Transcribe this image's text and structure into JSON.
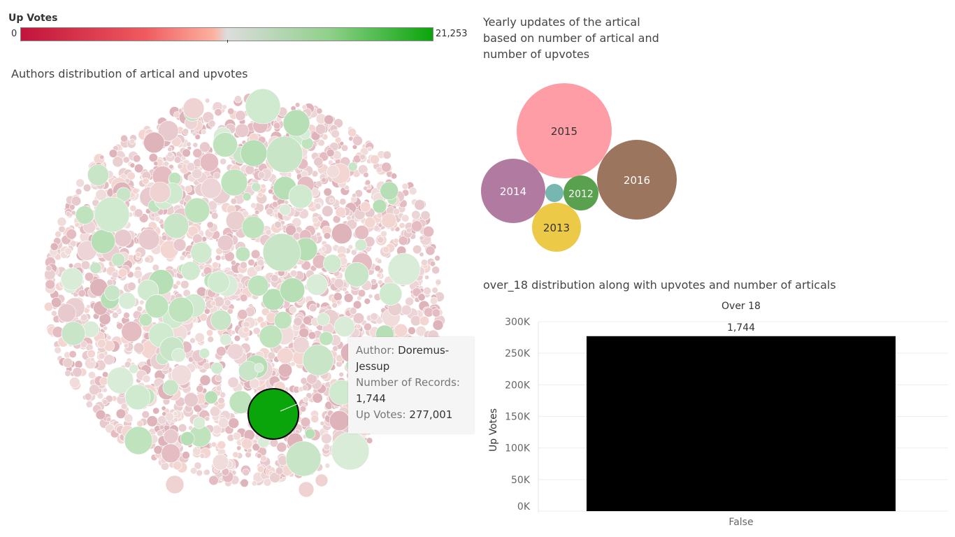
{
  "legend": {
    "title": "Up Votes",
    "min_label": "0",
    "max_label": "21,253",
    "colors": [
      "#c1133b",
      "#ef5a5e",
      "#fcb3a1",
      "#dddddd",
      "#8fd08a",
      "#0aa50a"
    ]
  },
  "titles": {
    "authors": "Authors distribution of artical and upvotes",
    "yearly": [
      "Yearly updates of the artical",
      "based on number of artical and",
      "number of upvotes"
    ],
    "over18": "over_18 distribution along with upvotes and number of articals"
  },
  "tooltip": {
    "author_label": "Author:",
    "author_value": "Doremus-Jessup",
    "author_value_line1": "Doremus-",
    "author_value_line2": "Jessup",
    "records_label": "Number of Records:",
    "records_value": "1,744",
    "upvotes_label": "Up Votes:",
    "upvotes_value": "277,001"
  },
  "chart_data": [
    {
      "type": "bubble",
      "title": "Authors distribution of artical and upvotes",
      "highlighted": {
        "author": "Doremus-Jessup",
        "records": 1744,
        "up_votes": 277001,
        "color": "#0aa50a"
      },
      "color_scale": {
        "measure": "Up Votes",
        "min": 0,
        "max": 21253
      }
    },
    {
      "type": "bubble",
      "title": "Yearly updates of the artical based on number of artical and number of upvotes",
      "bubbles": [
        {
          "label": "2015",
          "color": "#ff9da7",
          "text_color": "#333333"
        },
        {
          "label": "2016",
          "color": "#9c755f",
          "text_color": "#ffffff"
        },
        {
          "label": "2014",
          "color": "#b07aa1",
          "text_color": "#ffffff"
        },
        {
          "label": "2013",
          "color": "#edc948",
          "text_color": "#333333"
        },
        {
          "label": "2012",
          "color": "#59a14f",
          "text_color": "#ffffff"
        },
        {
          "label": "",
          "color": "#76b7b2",
          "text_color": "#ffffff"
        }
      ]
    },
    {
      "type": "bar",
      "title": "over_18 distribution along with upvotes and number of articals",
      "column_header": "Over 18",
      "categories": [
        "False"
      ],
      "values": [
        277001
      ],
      "data_labels": [
        "1,744"
      ],
      "ylabel": "Up Votes",
      "ylim": [
        0,
        300000
      ],
      "yticks": [
        0,
        50000,
        100000,
        150000,
        200000,
        250000,
        300000
      ],
      "ytick_labels": [
        "0K",
        "50K",
        "100K",
        "150K",
        "200K",
        "250K",
        "300K"
      ],
      "bar_color": "#000000"
    }
  ]
}
